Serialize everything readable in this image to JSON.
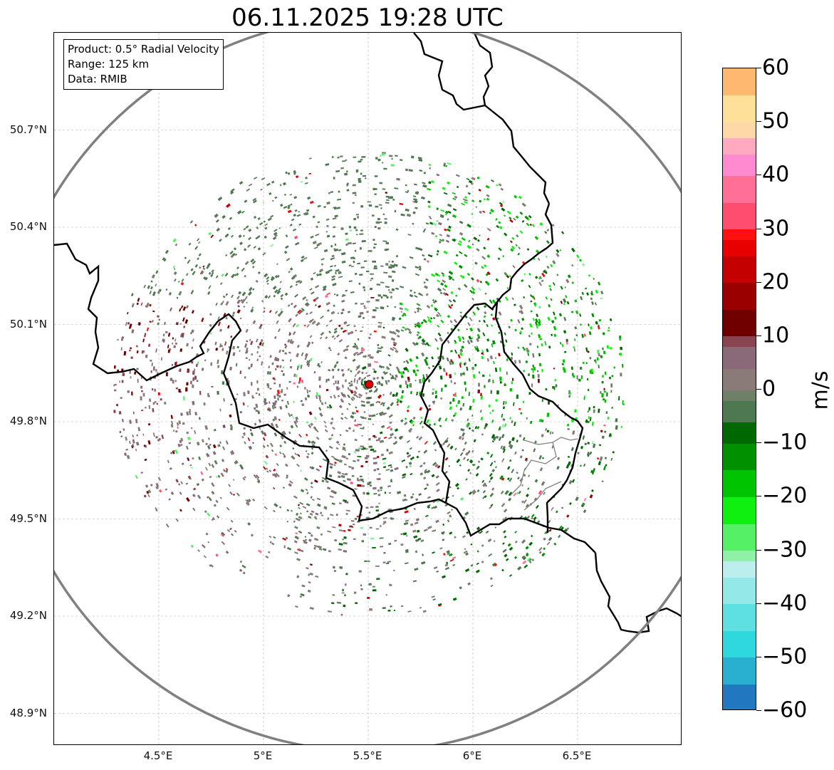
{
  "title": "06.11.2025 19:28 UTC",
  "info_box": {
    "product": "Product: 0.5° Radial Velocity",
    "range": "Range: 125 km",
    "data": "Data: RMIB"
  },
  "map": {
    "lon_range": [
      4.0,
      7.0
    ],
    "lat_range": [
      48.8,
      51.0
    ],
    "radar_site": {
      "lon": 5.505,
      "lat": 49.915
    },
    "range_ring_color": "#808080",
    "border_color": "#000000",
    "lat_ticks": [
      {
        "value": 48.9,
        "label": "48.9°N"
      },
      {
        "value": 49.2,
        "label": "49.2°N"
      },
      {
        "value": 49.5,
        "label": "49.5°N"
      },
      {
        "value": 49.8,
        "label": "49.8°N"
      },
      {
        "value": 50.1,
        "label": "50.1°N"
      },
      {
        "value": 50.4,
        "label": "50.4°N"
      },
      {
        "value": 50.7,
        "label": "50.7°N"
      }
    ],
    "lon_ticks": [
      {
        "value": 4.5,
        "label": "4.5°E"
      },
      {
        "value": 5.0,
        "label": "5°E"
      },
      {
        "value": 5.5,
        "label": "5.5°E"
      },
      {
        "value": 6.0,
        "label": "6°E"
      },
      {
        "value": 6.5,
        "label": "6.5°E"
      }
    ]
  },
  "colorbar": {
    "unit": "m/s",
    "min": -60,
    "max": 60,
    "ticks": [
      {
        "value": 60,
        "label": "60"
      },
      {
        "value": 50,
        "label": "50"
      },
      {
        "value": 40,
        "label": "40"
      },
      {
        "value": 30,
        "label": "30"
      },
      {
        "value": 20,
        "label": "20"
      },
      {
        "value": 10,
        "label": "10"
      },
      {
        "value": 0,
        "label": "0"
      },
      {
        "value": -10,
        "label": "−10"
      },
      {
        "value": -20,
        "label": "−20"
      },
      {
        "value": -30,
        "label": "−30"
      },
      {
        "value": -40,
        "label": "−40"
      },
      {
        "value": -50,
        "label": "−50"
      },
      {
        "value": -60,
        "label": "−60"
      }
    ],
    "color_stops": [
      {
        "value": -60,
        "color": "#1f78c0"
      },
      {
        "value": -55,
        "color": "#29b0d0"
      },
      {
        "value": -50,
        "color": "#2fd8dc"
      },
      {
        "value": -45,
        "color": "#5fe0e0"
      },
      {
        "value": -40,
        "color": "#94e8e8"
      },
      {
        "value": -35,
        "color": "#bdeeee"
      },
      {
        "value": -32,
        "color": "#8ff0a8"
      },
      {
        "value": -30,
        "color": "#55f065"
      },
      {
        "value": -25,
        "color": "#10f010"
      },
      {
        "value": -20,
        "color": "#00c400"
      },
      {
        "value": -15,
        "color": "#009000"
      },
      {
        "value": -10,
        "color": "#006800"
      },
      {
        "value": -6,
        "color": "#4e7850"
      },
      {
        "value": -2,
        "color": "#6e8068"
      },
      {
        "value": 0,
        "color": "#8a7a78"
      },
      {
        "value": 4,
        "color": "#8a6a78"
      },
      {
        "value": 8,
        "color": "#8a4450"
      },
      {
        "value": 10,
        "color": "#700000"
      },
      {
        "value": 15,
        "color": "#9a0000"
      },
      {
        "value": 20,
        "color": "#c40000"
      },
      {
        "value": 25,
        "color": "#e80000"
      },
      {
        "value": 28,
        "color": "#ff1010"
      },
      {
        "value": 30,
        "color": "#ff4d6e"
      },
      {
        "value": 35,
        "color": "#ff6f96"
      },
      {
        "value": 40,
        "color": "#ff8ad0"
      },
      {
        "value": 44,
        "color": "#ffaac0"
      },
      {
        "value": 47,
        "color": "#ffd8a8"
      },
      {
        "value": 50,
        "color": "#ffe098"
      },
      {
        "value": 55,
        "color": "#ffb870"
      },
      {
        "value": 60,
        "color": "#ff9a50"
      }
    ]
  }
}
